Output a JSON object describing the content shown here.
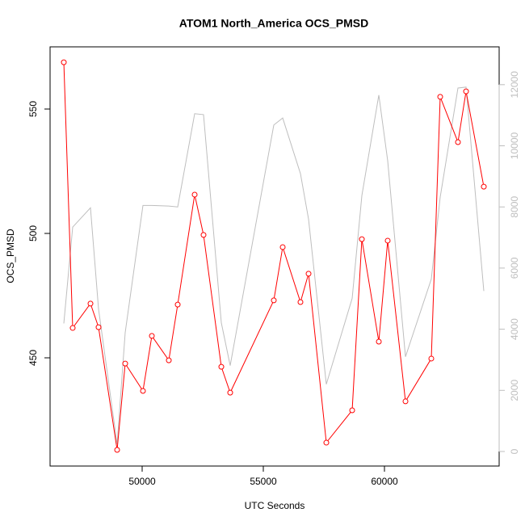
{
  "chart_data": {
    "type": "line",
    "title": "ATOM1 North_America OCS_PMSD",
    "xlabel": "UTC Seconds",
    "ylabel": "OCS_PMSD",
    "x": [
      46767,
      47133,
      47867,
      48200,
      48967,
      49300,
      50033,
      50400,
      51100,
      51467,
      52167,
      52533,
      53267,
      53633,
      55433,
      55800,
      56533,
      56867,
      57600,
      58667,
      59067,
      59767,
      60133,
      60867,
      61933,
      62300,
      63033,
      63367,
      64100
    ],
    "series": [
      {
        "color": "#bebebe",
        "axis": "y2",
        "markers": false,
        "values": [
          4190,
          7340,
          7970,
          4660,
          240,
          3890,
          8050,
          8050,
          8030,
          8000,
          11050,
          11020,
          4210,
          2810,
          10680,
          10910,
          9090,
          7600,
          2200,
          5010,
          8370,
          11660,
          9510,
          3100,
          5640,
          8320,
          11890,
          11920,
          5250
        ]
      },
      {
        "color": "#ff0000",
        "markers": true,
        "values": [
          568.8,
          462.0,
          471.8,
          462.3,
          413.0,
          447.7,
          436.7,
          458.8,
          449.0,
          471.4,
          515.6,
          499.4,
          446.4,
          436.0,
          473.1,
          494.5,
          472.4,
          483.8,
          415.9,
          428.9,
          497.7,
          456.5,
          497.1,
          432.5,
          449.7,
          554.9,
          536.7,
          557.1,
          518.8
        ]
      }
    ],
    "xlim": [
      46200,
      64733
    ],
    "xticks": [
      50000,
      55000,
      60000
    ],
    "ylim": [
      406.5,
      575
    ],
    "yticks": [
      450,
      500,
      550
    ],
    "y2lim": [
      -476,
      13237
    ],
    "y2ticks": [
      0,
      2000,
      4000,
      6000,
      8000,
      10000,
      12000
    ],
    "y2_color": "#bebebe"
  }
}
